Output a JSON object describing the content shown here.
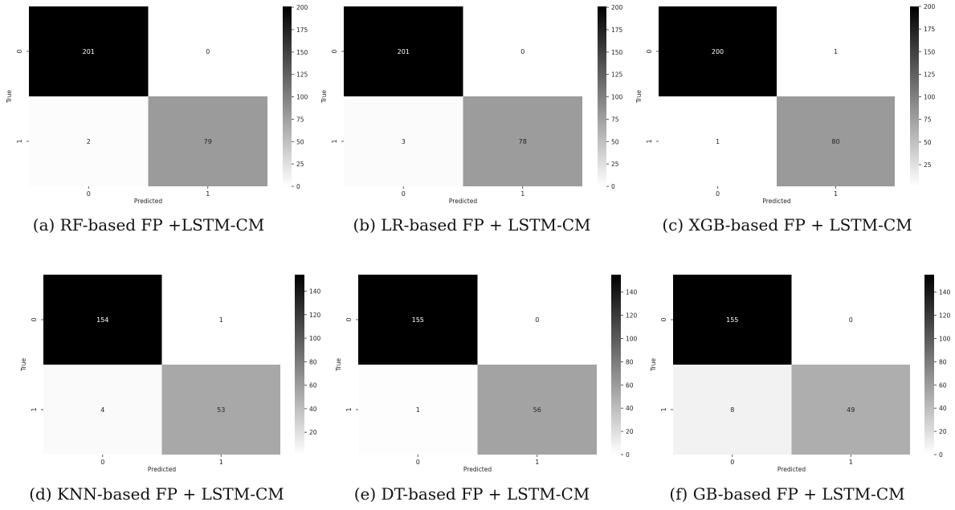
{
  "colorbar_colors": {
    "low": "#ffffff",
    "high": "#000000"
  },
  "chart_data": [
    {
      "type": "heatmap",
      "caption": "(a) RF-based FP +LSTM-CM",
      "xlabel": "Predicted",
      "ylabel": "True",
      "x_tick_labels": [
        "0",
        "1"
      ],
      "y_tick_labels": [
        "0",
        "1"
      ],
      "matrix": [
        [
          201,
          0
        ],
        [
          2,
          79
        ]
      ],
      "color_range": [
        0,
        201
      ],
      "colorbar_ticks": [
        0,
        25,
        50,
        75,
        100,
        125,
        150,
        175,
        200
      ]
    },
    {
      "type": "heatmap",
      "caption": "(b) LR-based FP + LSTM-CM",
      "xlabel": "Predicted",
      "ylabel": "True",
      "x_tick_labels": [
        "0",
        "1"
      ],
      "y_tick_labels": [
        "0",
        "1"
      ],
      "matrix": [
        [
          201,
          0
        ],
        [
          3,
          78
        ]
      ],
      "color_range": [
        0,
        201
      ],
      "colorbar_ticks": [
        0,
        25,
        50,
        75,
        100,
        125,
        150,
        175,
        200
      ]
    },
    {
      "type": "heatmap",
      "caption": "(c) XGB-based FP + LSTM-CM",
      "xlabel": "Predicted",
      "ylabel": "True",
      "x_tick_labels": [
        "0",
        "1"
      ],
      "y_tick_labels": [
        "0",
        "1"
      ],
      "matrix": [
        [
          200,
          1
        ],
        [
          1,
          80
        ]
      ],
      "color_range": [
        1,
        200
      ],
      "colorbar_ticks": [
        25,
        50,
        75,
        100,
        125,
        150,
        175,
        200
      ]
    },
    {
      "type": "heatmap",
      "caption": "(d) KNN-based FP + LSTM-CM",
      "xlabel": "Predicted",
      "ylabel": "True",
      "x_tick_labels": [
        "0",
        "1"
      ],
      "y_tick_labels": [
        "0",
        "1"
      ],
      "matrix": [
        [
          154,
          1
        ],
        [
          4,
          53
        ]
      ],
      "color_range": [
        1,
        154
      ],
      "colorbar_ticks": [
        20,
        40,
        60,
        80,
        100,
        120,
        140
      ]
    },
    {
      "type": "heatmap",
      "caption": "(e) DT-based FP + LSTM-CM",
      "xlabel": "Predicted",
      "ylabel": "True",
      "x_tick_labels": [
        "0",
        "1"
      ],
      "y_tick_labels": [
        "0",
        "1"
      ],
      "matrix": [
        [
          155,
          0
        ],
        [
          1,
          56
        ]
      ],
      "color_range": [
        0,
        155
      ],
      "colorbar_ticks": [
        0,
        20,
        40,
        60,
        80,
        100,
        120,
        140
      ]
    },
    {
      "type": "heatmap",
      "caption": "(f) GB-based FP + LSTM-CM",
      "xlabel": "Predicted",
      "ylabel": "True",
      "x_tick_labels": [
        "0",
        "1"
      ],
      "y_tick_labels": [
        "0",
        "1"
      ],
      "matrix": [
        [
          155,
          0
        ],
        [
          8,
          49
        ]
      ],
      "color_range": [
        0,
        155
      ],
      "colorbar_ticks": [
        0,
        20,
        40,
        60,
        80,
        100,
        120,
        140
      ]
    }
  ]
}
